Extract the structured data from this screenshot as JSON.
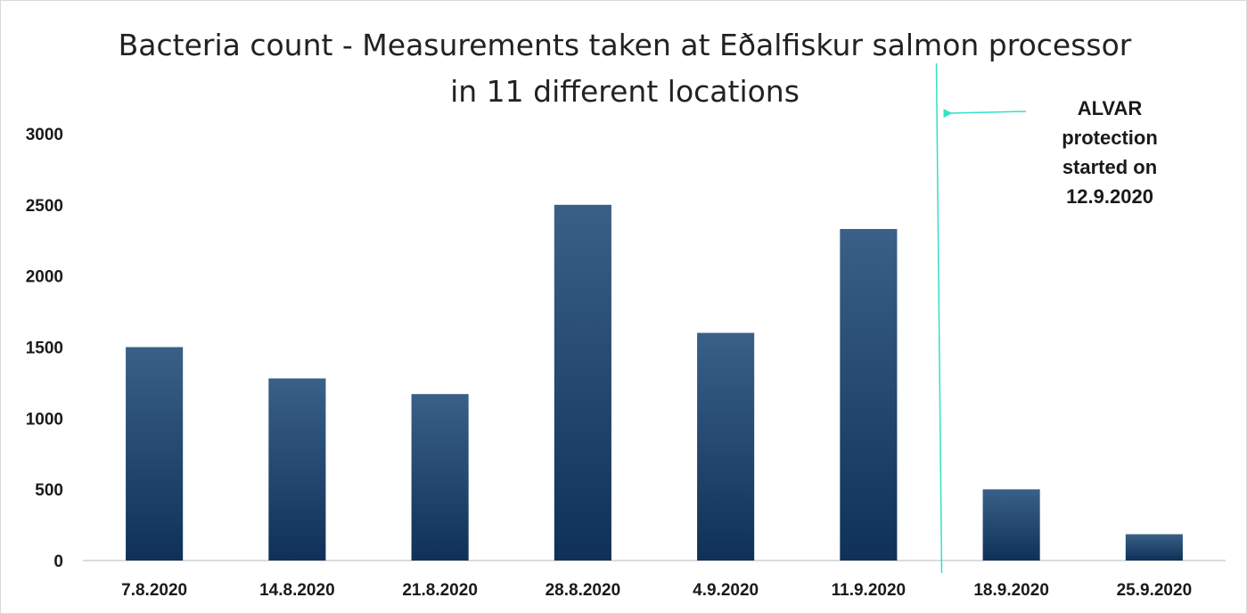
{
  "chart_data": {
    "type": "bar",
    "title": "Bacteria count - Measurements taken at Eðalfiskur salmon processor in 11 different locations",
    "categories": [
      "7.8.2020",
      "14.8.2020",
      "21.8.2020",
      "28.8.2020",
      "4.9.2020",
      "11.9.2020",
      "18.9.2020",
      "25.9.2020"
    ],
    "values": [
      1500,
      1280,
      1170,
      2500,
      1600,
      2330,
      500,
      185
    ],
    "yticks": [
      "0",
      "500",
      "1000",
      "1500",
      "2000",
      "2500",
      "3000"
    ],
    "ylim": [
      0,
      3000
    ],
    "xlabel": "",
    "ylabel": "",
    "grid": false,
    "legend": "none",
    "annotation": {
      "lines": [
        "ALVAR",
        "protection",
        "started on",
        "12.9.2020"
      ],
      "marker_between": [
        "11.9.2020",
        "18.9.2020"
      ]
    },
    "colors": {
      "bar_top": "#3a6088",
      "bar_bottom": "#0f3157",
      "marker": "#34e0c8",
      "axis": "#d0d0d0"
    }
  }
}
